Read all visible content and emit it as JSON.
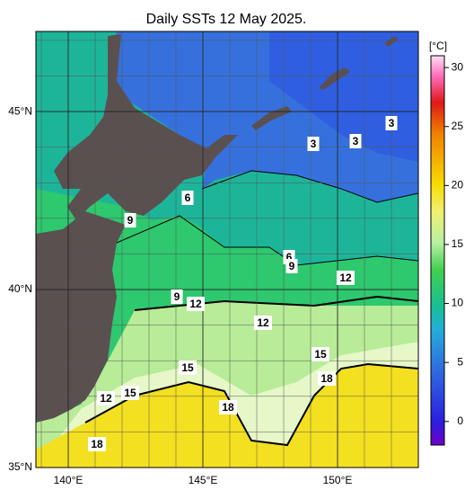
{
  "title": "Daily SSTs 12 May 2025.",
  "map": {
    "lonlim": [
      138.8,
      153
    ],
    "latlim": [
      35,
      47.25
    ],
    "grid_step": 1,
    "xticks": [
      {
        "value": 140,
        "label": "140°E"
      },
      {
        "value": 145,
        "label": "145°E"
      },
      {
        "value": 150,
        "label": "150°E"
      }
    ],
    "yticks": [
      {
        "value": 35,
        "label": "35°N"
      },
      {
        "value": 40,
        "label": "40°N"
      },
      {
        "value": 45,
        "label": "45°N"
      }
    ]
  },
  "colorbar": {
    "label": "[°C]",
    "lim": [
      -2,
      31
    ],
    "ticks": [
      0,
      5,
      10,
      15,
      20,
      25,
      30
    ]
  },
  "contour_labels": [
    3,
    3,
    3,
    6,
    6,
    9,
    9,
    9,
    12,
    12,
    12,
    12,
    15,
    15,
    15,
    18,
    18,
    18
  ]
}
